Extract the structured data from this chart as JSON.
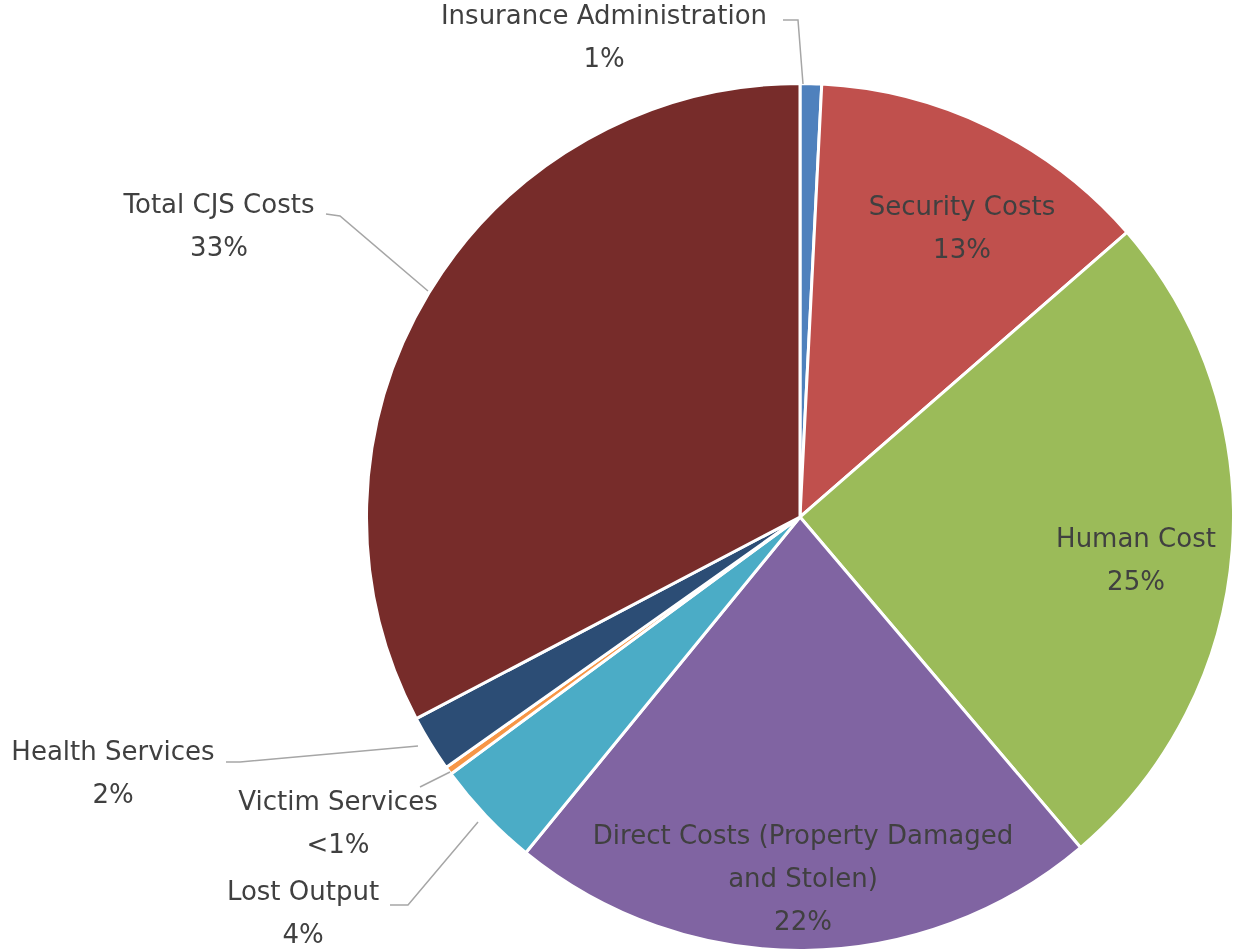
{
  "chart_data": {
    "type": "pie",
    "categories": [
      "Insurance Administration",
      "Security Costs",
      "Human Cost",
      "Direct Costs (Property Damaged and Stolen)",
      "Lost Output",
      "Victim Services",
      "Health Services",
      "Total CJS Costs"
    ],
    "values": [
      0.8,
      12.8,
      25.2,
      22.1,
      4.0,
      0.3,
      2.1,
      32.7
    ],
    "colors": [
      "#4f81bd",
      "#c0504d",
      "#9bbb59",
      "#8064a2",
      "#4bacc6",
      "#f79646",
      "#2c4d75",
      "#772c2a"
    ],
    "value_labels": [
      "1%",
      "13%",
      "25%",
      "22%",
      "4%",
      "<1%",
      "2%",
      "33%"
    ],
    "legend": false
  }
}
